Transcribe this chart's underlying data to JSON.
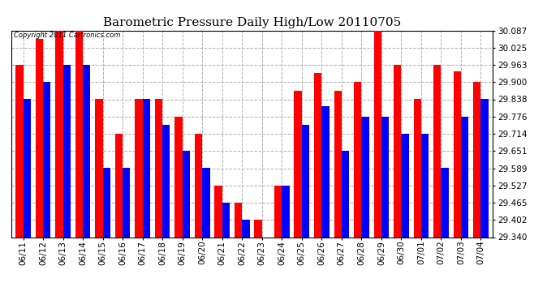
{
  "title": "Barometric Pressure Daily High/Low 20110705",
  "copyright": "Copyright 2011 Cartronics.com",
  "dates": [
    "06/11",
    "06/12",
    "06/13",
    "06/14",
    "06/15",
    "06/16",
    "06/17",
    "06/18",
    "06/19",
    "06/20",
    "06/21",
    "06/22",
    "06/23",
    "06/24",
    "06/25",
    "06/26",
    "06/27",
    "06/28",
    "06/29",
    "06/30",
    "07/01",
    "07/02",
    "07/03",
    "07/04"
  ],
  "highs": [
    29.963,
    30.056,
    30.087,
    30.14,
    29.838,
    29.714,
    29.838,
    29.838,
    29.776,
    29.714,
    29.527,
    29.465,
    29.402,
    29.527,
    29.87,
    29.932,
    29.87,
    29.9,
    30.087,
    29.963,
    29.838,
    29.963,
    29.938,
    29.9
  ],
  "lows": [
    29.838,
    29.9,
    29.963,
    29.963,
    29.59,
    29.59,
    29.838,
    29.745,
    29.651,
    29.59,
    29.465,
    29.402,
    29.34,
    29.527,
    29.745,
    29.814,
    29.651,
    29.776,
    29.776,
    29.714,
    29.714,
    29.59,
    29.776,
    29.838
  ],
  "ymin": 29.34,
  "ymax": 30.087,
  "yticks": [
    29.34,
    29.402,
    29.465,
    29.527,
    29.589,
    29.651,
    29.714,
    29.776,
    29.838,
    29.9,
    29.963,
    30.025,
    30.087
  ],
  "high_color": "#ff0000",
  "low_color": "#0000ff",
  "bg_color": "#ffffff",
  "grid_color": "#b0b0b0",
  "title_fontsize": 11,
  "tick_fontsize": 7.5,
  "bar_width": 0.38
}
